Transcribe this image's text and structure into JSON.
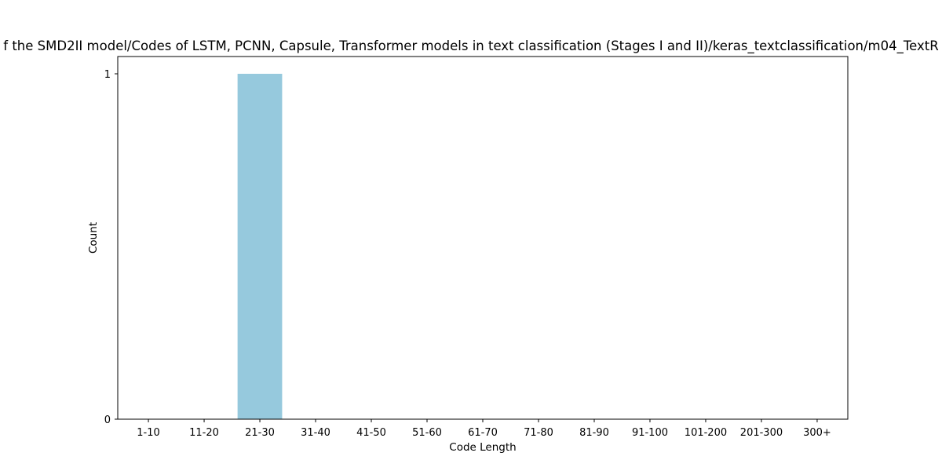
{
  "chart_data": {
    "type": "bar",
    "title": "f the SMD2II model/Codes of LSTM, PCNN, Capsule, Transformer models in text classification (Stages I and II)/keras_textclassification/m04_TextR",
    "xlabel": "Code Length",
    "ylabel": "Count",
    "categories": [
      "1-10",
      "11-20",
      "21-30",
      "31-40",
      "41-50",
      "51-60",
      "61-70",
      "71-80",
      "81-90",
      "91-100",
      "101-200",
      "201-300",
      "300+"
    ],
    "values": [
      0,
      0,
      1,
      0,
      0,
      0,
      0,
      0,
      0,
      0,
      0,
      0,
      0
    ],
    "ylim": [
      0,
      1.05
    ],
    "yticks": [
      0,
      1
    ],
    "bar_color": "#96c9dd",
    "grid": false,
    "legend": "none"
  }
}
